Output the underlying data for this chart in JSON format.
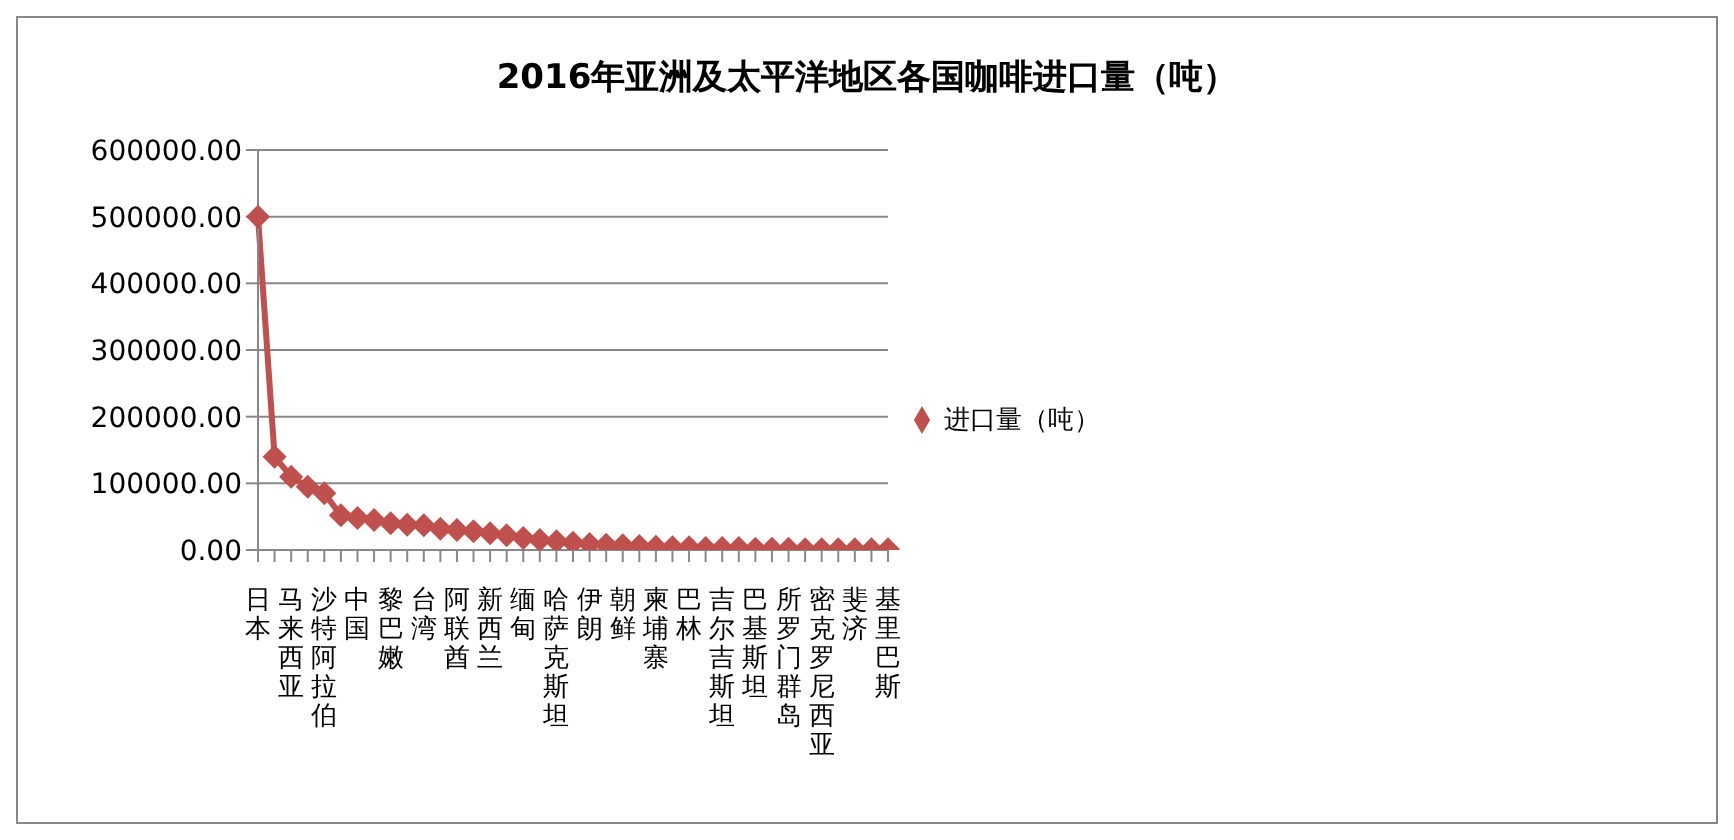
{
  "chart_data": {
    "type": "line",
    "title": "2016年亚洲及太平洋地区各国咖啡进口量（吨）",
    "categories": [
      "日本",
      null,
      "马来西亚",
      null,
      "沙特阿拉伯",
      null,
      "中国",
      null,
      "黎巴嫩",
      null,
      "台湾",
      null,
      "阿联酋",
      null,
      "新西兰",
      null,
      "缅甸",
      null,
      "哈萨克斯坦",
      null,
      "伊朗",
      null,
      "朝鲜",
      null,
      "柬埔寨",
      null,
      "巴林",
      null,
      "吉尔吉斯坦",
      null,
      "巴基斯坦",
      null,
      "所罗门群岛",
      null,
      "密克罗尼西亚",
      null,
      "斐济",
      null,
      "基里巴斯"
    ],
    "series": [
      {
        "name": "进口量（吨）",
        "color": "#c0504d",
        "values": [
          500000,
          140000,
          110000,
          95000,
          85000,
          52000,
          48000,
          45000,
          40000,
          38000,
          37000,
          32000,
          30000,
          28000,
          25000,
          22000,
          18000,
          15000,
          13000,
          11000,
          9000,
          8000,
          7000,
          6000,
          5000,
          4000,
          4000,
          3000,
          3000,
          3000,
          2000,
          2000,
          2000,
          1000,
          1000,
          1000,
          1000,
          1000,
          1000
        ]
      }
    ],
    "ylim": [
      0,
      600000
    ],
    "yticks": [
      {
        "value": 0,
        "label": "0.00"
      },
      {
        "value": 100000,
        "label": "100000.00"
      },
      {
        "value": 200000,
        "label": "200000.00"
      },
      {
        "value": 300000,
        "label": "300000.00"
      },
      {
        "value": 400000,
        "label": "400000.00"
      },
      {
        "value": 500000,
        "label": "500000.00"
      },
      {
        "value": 600000,
        "label": "600000.00"
      }
    ],
    "grid": "y",
    "legend": "right",
    "marker": "diamond",
    "line_style": "solid"
  }
}
